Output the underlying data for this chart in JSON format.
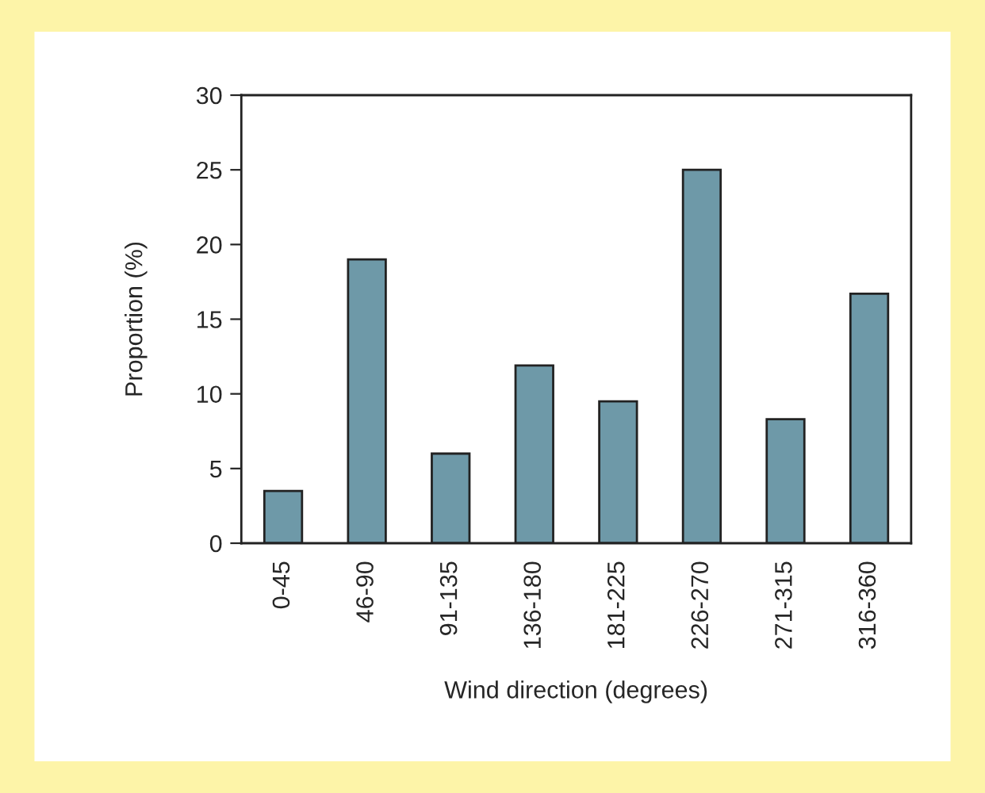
{
  "chart_data": {
    "type": "bar",
    "xlabel": "Wind direction (degrees)",
    "ylabel": "Proportion (%)",
    "categories": [
      "0-45",
      "46-90",
      "91-135",
      "136-180",
      "181-225",
      "226-270",
      "271-315",
      "316-360"
    ],
    "values": [
      3.5,
      19.0,
      6.0,
      11.9,
      9.5,
      25.0,
      8.3,
      16.7
    ],
    "color": "#6e99a8",
    "ylim": [
      0,
      30
    ],
    "yticks": [
      0,
      5,
      10,
      15,
      20,
      25,
      30
    ],
    "grid": false,
    "legend": false
  }
}
